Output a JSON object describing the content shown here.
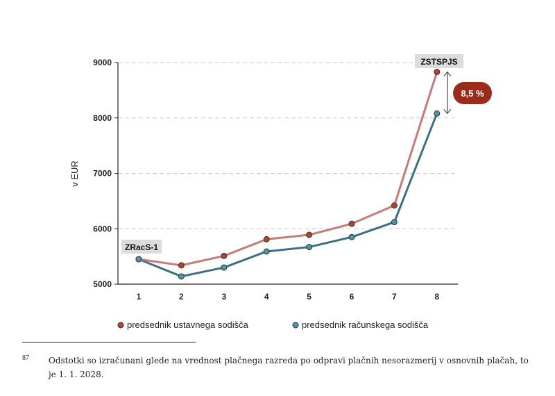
{
  "chart_data": {
    "type": "line",
    "categories": [
      "1",
      "2",
      "3",
      "4",
      "5",
      "6",
      "7",
      "8"
    ],
    "series": [
      {
        "name": "predsednik ustavnega sodišča",
        "color": "#c77a78",
        "marker_color": "#b5432e",
        "values": [
          5450,
          5340,
          5510,
          5810,
          5890,
          6090,
          6420,
          8830
        ]
      },
      {
        "name": "predsednik računskega sodišča",
        "color": "#3c6e84",
        "marker_color": "#4c96a8",
        "values": [
          5450,
          5140,
          5300,
          5590,
          5670,
          5850,
          6120,
          8080
        ]
      }
    ],
    "ylabel": "v EUR",
    "ylim": [
      5000,
      9000
    ],
    "yticks": [
      5000,
      6000,
      7000,
      8000,
      9000
    ],
    "grid": "horizontal dashed",
    "annotations": {
      "start_label": "ZRacS-1",
      "end_label": "ZSTSPJS",
      "difference": "8,5 %"
    }
  },
  "footnote": {
    "number": "87",
    "text": "Odstotki so izračunani glede na vrednost plačnega razreda po odpravi plačnih nesorazmerij v osnovnih plačah, to je 1. 1. 2028."
  }
}
